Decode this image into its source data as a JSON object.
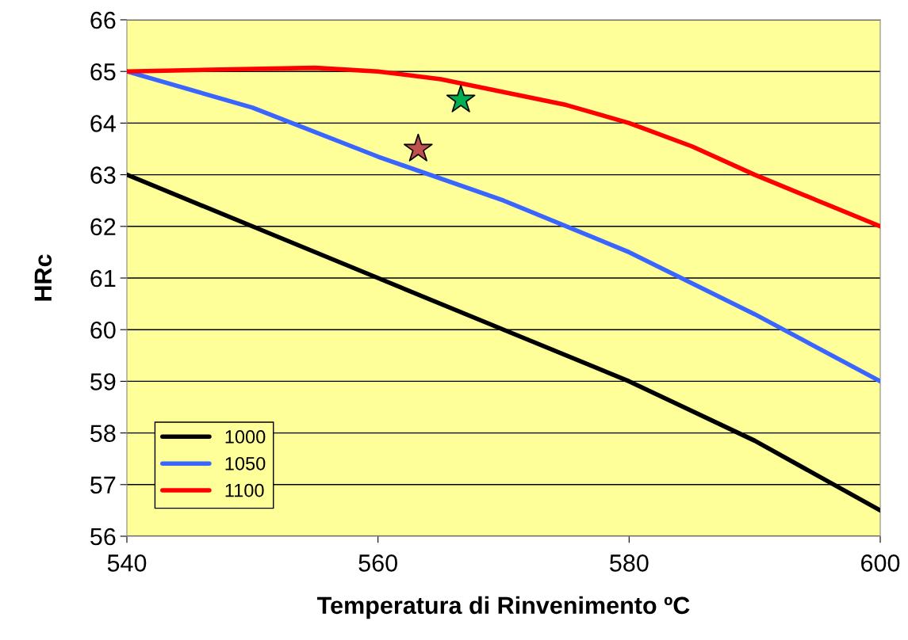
{
  "chart_data": {
    "type": "line",
    "xlabel": "Temperatura di Rinvenimento ºC",
    "ylabel": "HRc",
    "xlim": [
      540,
      600
    ],
    "xticks": [
      540,
      560,
      580,
      600
    ],
    "ylim": [
      56,
      66
    ],
    "yticks": [
      56,
      57,
      58,
      59,
      60,
      61,
      62,
      63,
      64,
      65,
      66
    ],
    "grid": "y",
    "legend": "bottom left",
    "marker": "none",
    "line_style": "solid",
    "series": [
      {
        "name": "1000",
        "color": "#000000",
        "x": [
          540,
          550,
          560,
          570,
          580,
          590,
          600
        ],
        "values": [
          63,
          62,
          61,
          60,
          59,
          57.85,
          56.5
        ]
      },
      {
        "name": "1050",
        "color": "#3a66ff",
        "x": [
          540,
          550,
          560,
          570,
          580,
          590,
          600
        ],
        "values": [
          65,
          64.3,
          63.35,
          62.5,
          61.5,
          60.3,
          59
        ]
      },
      {
        "name": "1100",
        "color": "#ff0000",
        "x": [
          540,
          550,
          555,
          560,
          565,
          570,
          575,
          580,
          585,
          590,
          595,
          600
        ],
        "values": [
          65,
          65.05,
          65.07,
          65,
          64.85,
          64.6,
          64.35,
          64,
          63.55,
          63,
          62.5,
          62
        ]
      },
      {
        "type": "scatter",
        "marker": "star",
        "color": "#00b050",
        "x": [
          566.6
        ],
        "values": [
          64.45
        ]
      },
      {
        "type": "scatter",
        "marker": "star",
        "color": "#c0504d",
        "x": [
          563.2
        ],
        "values": [
          63.5
        ]
      }
    ]
  }
}
